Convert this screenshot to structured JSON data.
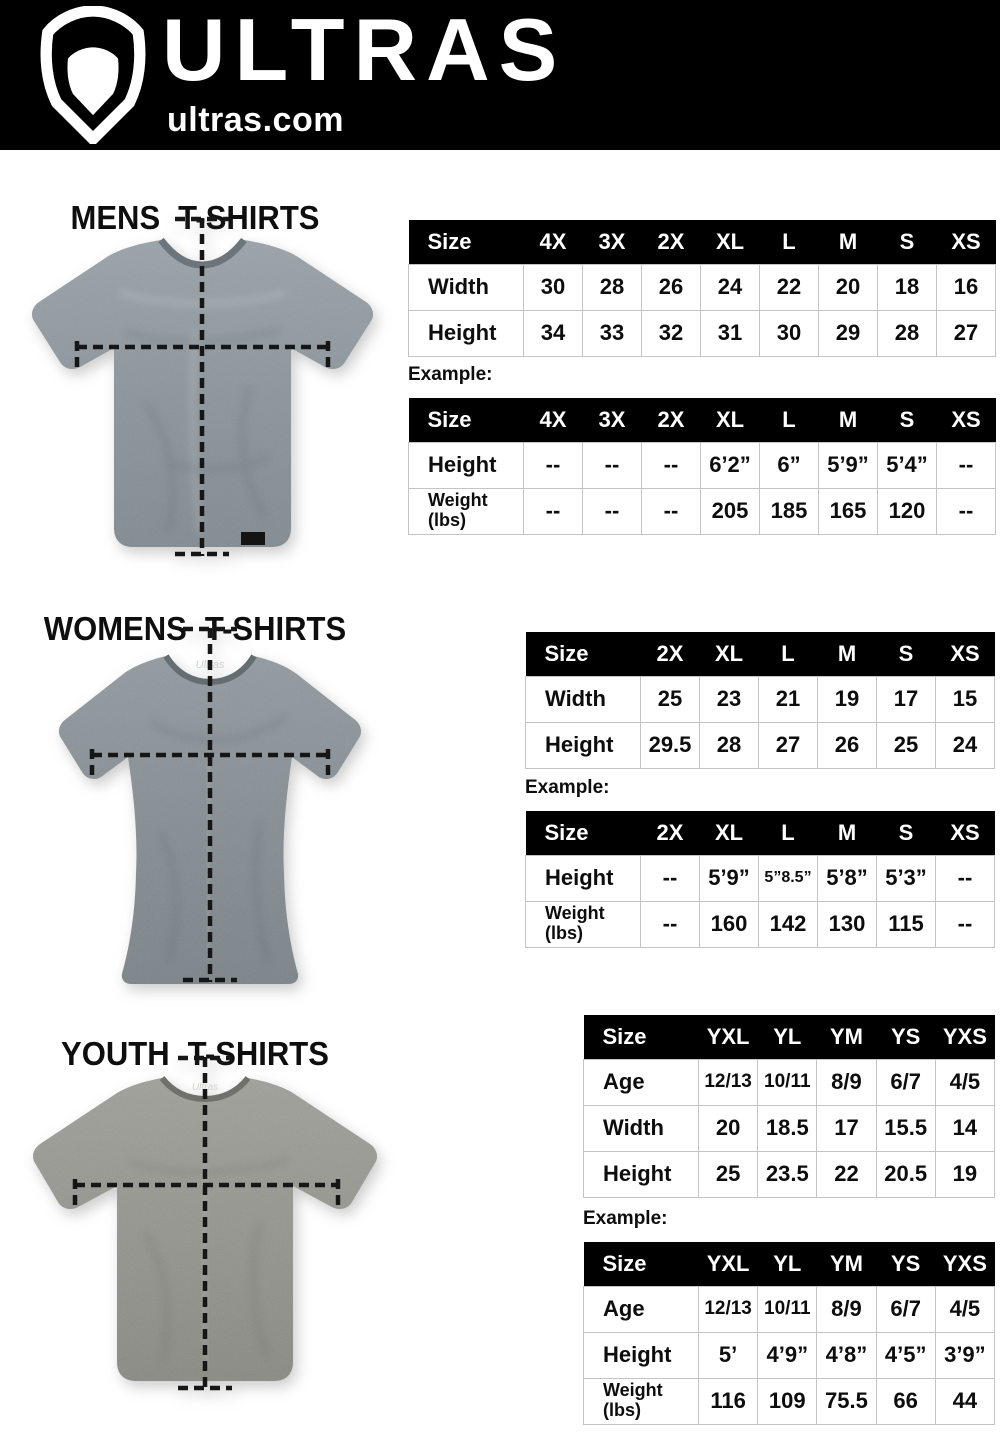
{
  "header": {
    "brand": "ULTRAS",
    "site": "ultras.com",
    "logo_icon": "pentagon-shield-icon",
    "bg_color": "#000000"
  },
  "colors": {
    "table_header_bg": "#000000",
    "table_border": "#c4c4c4",
    "text": "#111111",
    "shirt_mens": "#8e979e",
    "shirt_womens": "#868e93",
    "shirt_youth": "#96968f"
  },
  "sections": [
    {
      "id": "mens",
      "title": "MENS T-SHIRTS",
      "example_label": "Example:",
      "size_table": {
        "columns": [
          "Size",
          "4X",
          "3X",
          "2X",
          "XL",
          "L",
          "M",
          "S",
          "XS"
        ],
        "rows": [
          {
            "label": "Width",
            "values": [
              "30",
              "28",
              "26",
              "24",
              "22",
              "20",
              "18",
              "16"
            ]
          },
          {
            "label": "Height",
            "values": [
              "34",
              "33",
              "32",
              "31",
              "30",
              "29",
              "28",
              "27"
            ]
          }
        ]
      },
      "example_table": {
        "columns": [
          "Size",
          "4X",
          "3X",
          "2X",
          "XL",
          "L",
          "M",
          "S",
          "XS"
        ],
        "rows": [
          {
            "label": "Height",
            "values": [
              "--",
              "--",
              "--",
              "6’2”",
              "6”",
              "5’9”",
              "5’4”",
              "--"
            ]
          },
          {
            "label": "Weight\n(lbs)",
            "values": [
              "--",
              "--",
              "--",
              "205",
              "185",
              "165",
              "120",
              "--"
            ]
          }
        ]
      }
    },
    {
      "id": "womens",
      "title": "WOMENS T-SHIRTS",
      "example_label": "Example:",
      "size_table": {
        "columns": [
          "Size",
          "2X",
          "XL",
          "L",
          "M",
          "S",
          "XS"
        ],
        "rows": [
          {
            "label": "Width",
            "values": [
              "25",
              "23",
              "21",
              "19",
              "17",
              "15"
            ]
          },
          {
            "label": "Height",
            "values": [
              "29.5",
              "28",
              "27",
              "26",
              "25",
              "24"
            ]
          }
        ]
      },
      "example_table": {
        "columns": [
          "Size",
          "2X",
          "XL",
          "L",
          "M",
          "S",
          "XS"
        ],
        "rows": [
          {
            "label": "Height",
            "values": [
              "--",
              "5’9”",
              "5”8.5”",
              "5’8”",
              "5’3”",
              "--"
            ]
          },
          {
            "label": "Weight\n(lbs)",
            "values": [
              "--",
              "160",
              "142",
              "130",
              "115",
              "--"
            ]
          }
        ]
      }
    },
    {
      "id": "youth",
      "title": "YOUTH T-SHIRTS",
      "example_label": "Example:",
      "size_table": {
        "columns": [
          "Size",
          "YXL",
          "YL",
          "YM",
          "YS",
          "YXS"
        ],
        "rows": [
          {
            "label": "Age",
            "values": [
              "12/13",
              "10/11",
              "8/9",
              "6/7",
              "4/5"
            ]
          },
          {
            "label": "Width",
            "values": [
              "20",
              "18.5",
              "17",
              "15.5",
              "14"
            ]
          },
          {
            "label": "Height",
            "values": [
              "25",
              "23.5",
              "22",
              "20.5",
              "19"
            ]
          }
        ]
      },
      "example_table": {
        "columns": [
          "Size",
          "YXL",
          "YL",
          "YM",
          "YS",
          "YXS"
        ],
        "rows": [
          {
            "label": "Age",
            "values": [
              "12/13",
              "10/11",
              "8/9",
              "6/7",
              "4/5"
            ]
          },
          {
            "label": "Height",
            "values": [
              "5’",
              "4’9”",
              "4’8”",
              "4’5”",
              "3’9”"
            ]
          },
          {
            "label": "Weight\n(lbs)",
            "values": [
              "116",
              "109",
              "75.5",
              "66",
              "44"
            ]
          }
        ]
      }
    }
  ]
}
